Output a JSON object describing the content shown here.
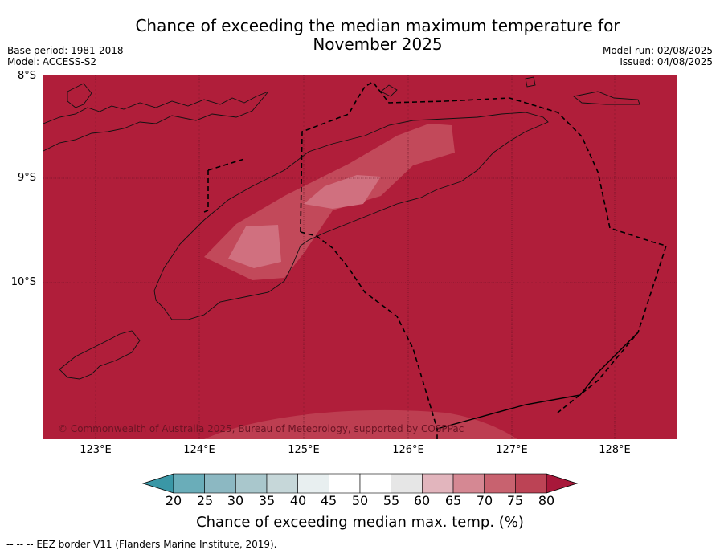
{
  "title_line1": "Chance of exceeding the median maximum temperature for",
  "title_line2": "November 2025",
  "meta": {
    "base_period": "Base period: 1981-2018",
    "model": "Model: ACCESS-S2",
    "model_run": "Model run: 02/08/2025",
    "issued": "Issued: 04/08/2025"
  },
  "map": {
    "lat_labels": [
      "8°S",
      "9°S",
      "10°S"
    ],
    "lon_labels": [
      "123°E",
      "124°E",
      "125°E",
      "126°E",
      "127°E",
      "128°E"
    ],
    "copyright": "© Commonwealth of Australia 2025, Bureau of Meteorology, supported by COSPPac",
    "dominant_category": "> 80",
    "background_color": "#b01e3a"
  },
  "colorbar": {
    "ticks": [
      "20",
      "25",
      "30",
      "35",
      "40",
      "45",
      "50",
      "55",
      "60",
      "65",
      "70",
      "75",
      "80"
    ],
    "colors": [
      "#3a97a6",
      "#6aadb9",
      "#8cb8c2",
      "#a9c7cc",
      "#c6d7d9",
      "#e8eff0",
      "#ffffff",
      "#ffffff",
      "#e6e6e6",
      "#e2b5bd",
      "#d58893",
      "#c8626f",
      "#bc4355",
      "#a8183a"
    ],
    "label": "Chance of exceeding median max. temp. (%)"
  },
  "footnote": "--  --  -- EEZ border V11 (Flanders Marine Institute, 2019)."
}
